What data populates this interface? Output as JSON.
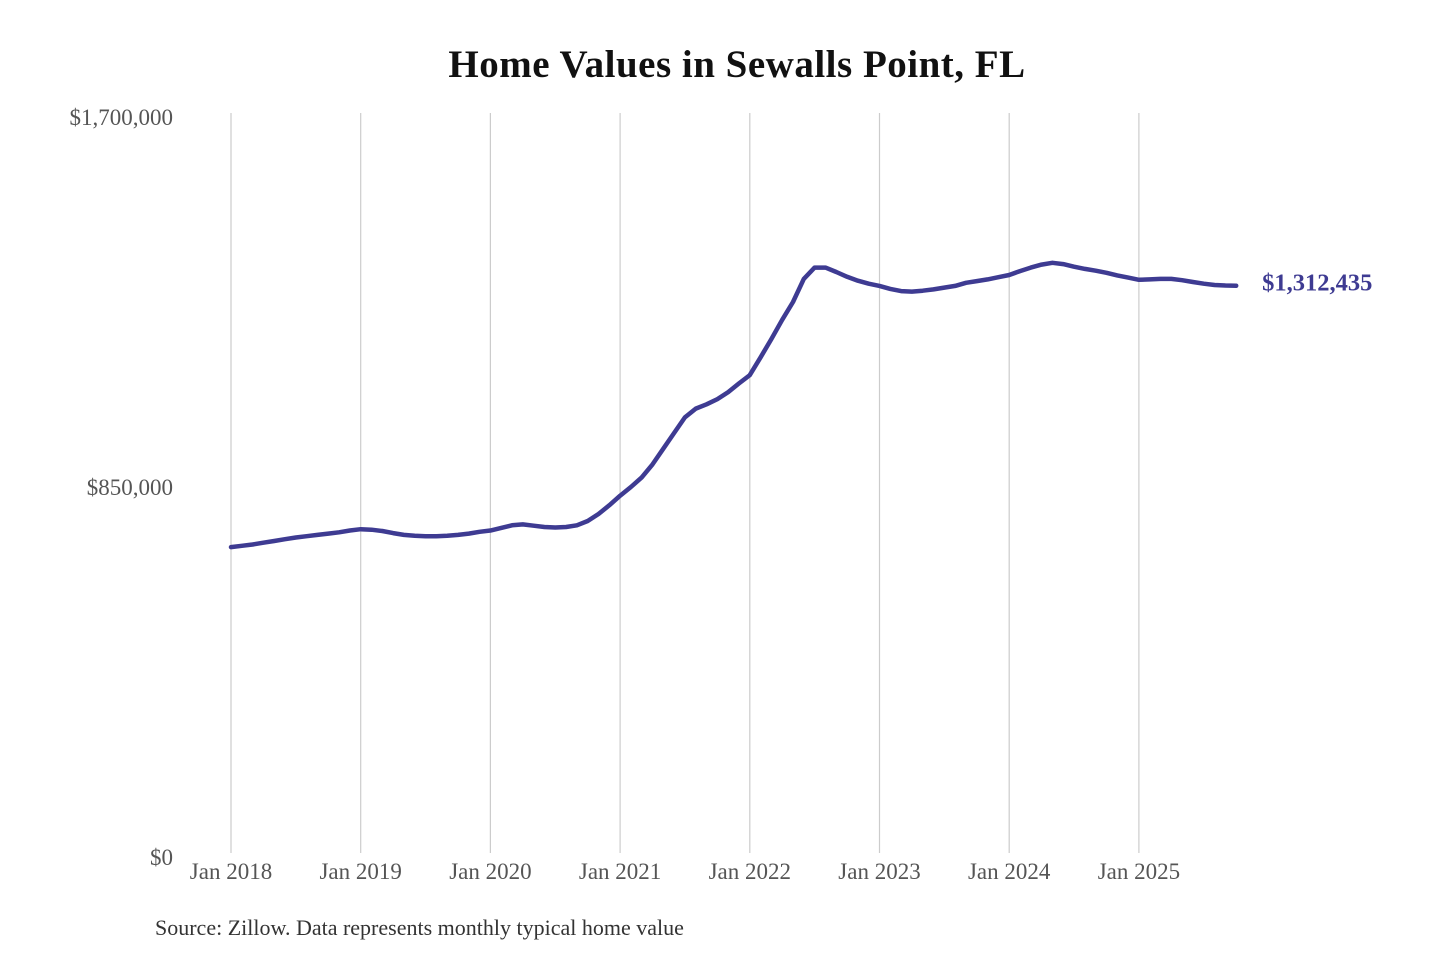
{
  "page": {
    "background": "#ffffff"
  },
  "chart": {
    "title": "Home Values in Sewalls Point, FL",
    "source_note": "Source: Zillow. Data represents monthly typical home value",
    "end_label": "$1,312,435",
    "colors": {
      "line": "#3e3b92",
      "grid": "#cccccc",
      "tick_label": "#555555",
      "title": "#111111",
      "source": "#333333"
    }
  },
  "chart_data": {
    "type": "line",
    "title": "Home Values in Sewalls Point, FL",
    "xlabel": "",
    "ylabel": "",
    "ylim": [
      0,
      1700000
    ],
    "grid": "vertical-only",
    "legend": "none",
    "x_tick_labels": [
      "Jan 2018",
      "Jan 2019",
      "Jan 2020",
      "Jan 2021",
      "Jan 2022",
      "Jan 2023",
      "Jan 2024",
      "Jan 2025"
    ],
    "y_ticks": [
      {
        "value": 0,
        "label": "$0"
      },
      {
        "value": 850000,
        "label": "$850,000"
      },
      {
        "value": 1700000,
        "label": "$1,700,000"
      }
    ],
    "end_value": 1312435,
    "end_value_label": "$1,312,435",
    "annotation": "Source: Zillow. Data represents monthly typical home value",
    "series": [
      {
        "name": "Monthly typical home value (USD)",
        "x_start": "2018-01",
        "x_interval": "month",
        "values": [
          712000,
          715000,
          718000,
          722000,
          726000,
          730000,
          734000,
          737000,
          740000,
          743000,
          746000,
          750000,
          753000,
          752000,
          749000,
          744000,
          740000,
          738000,
          737000,
          737000,
          738000,
          740000,
          743000,
          747000,
          750000,
          756000,
          762000,
          764000,
          761000,
          758000,
          757000,
          758000,
          762000,
          772000,
          788000,
          808000,
          830000,
          850000,
          872000,
          902000,
          938000,
          974000,
          1010000,
          1030000,
          1040000,
          1052000,
          1068000,
          1088000,
          1107000,
          1148000,
          1190000,
          1234000,
          1275000,
          1328000,
          1354000,
          1354000,
          1344000,
          1333000,
          1324000,
          1317000,
          1312000,
          1305000,
          1300000,
          1299000,
          1301000,
          1304000,
          1308000,
          1312000,
          1319000,
          1323000,
          1327000,
          1332000,
          1337000,
          1346000,
          1354000,
          1361000,
          1365000,
          1362000,
          1356000,
          1351000,
          1347000,
          1342000,
          1336000,
          1331000,
          1326000,
          1327000,
          1328000,
          1328000,
          1325000,
          1321000,
          1317000,
          1314000,
          1313000,
          1312435
        ]
      }
    ]
  }
}
